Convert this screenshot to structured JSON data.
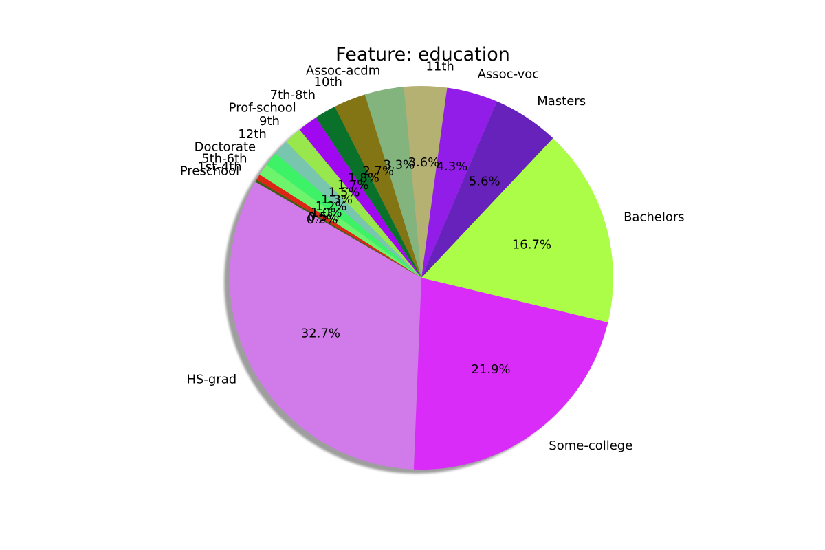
{
  "chart_data": {
    "type": "pie",
    "title": "Feature: education",
    "start_angle_deg": 150,
    "direction": "counterclockwise",
    "shadow": true,
    "slices": [
      {
        "label": "HS-grad",
        "value": 32.7,
        "pct_text": "32.7%",
        "color": "#d17aea"
      },
      {
        "label": "Some-college",
        "value": 21.9,
        "pct_text": "21.9%",
        "color": "#da2cf9"
      },
      {
        "label": "Bachelors",
        "value": 16.7,
        "pct_text": "16.7%",
        "color": "#acfd47"
      },
      {
        "label": "Masters",
        "value": 5.6,
        "pct_text": "5.6%",
        "color": "#6622bb"
      },
      {
        "label": "Assoc-voc",
        "value": 4.3,
        "pct_text": "4.3%",
        "color": "#931de8"
      },
      {
        "label": "11th",
        "value": 3.6,
        "pct_text": "3.6%",
        "color": "#b5b173"
      },
      {
        "label": "Assoc-acdm",
        "value": 3.3,
        "pct_text": "3.3%",
        "color": "#83b47d"
      },
      {
        "label": "10th",
        "value": 2.7,
        "pct_text": "2.7%",
        "color": "#837414"
      },
      {
        "label": "7th-8th",
        "value": 1.8,
        "pct_text": "1.8%",
        "color": "#09712a"
      },
      {
        "label": "Prof-school",
        "value": 1.7,
        "pct_text": "1.7%",
        "color": "#a008ef"
      },
      {
        "label": "9th",
        "value": 1.5,
        "pct_text": "1.5%",
        "color": "#98e84d"
      },
      {
        "label": "12th",
        "value": 1.3,
        "pct_text": "1.3%",
        "color": "#78c6ae"
      },
      {
        "label": "Doctorate",
        "value": 1.2,
        "pct_text": "1.2%",
        "color": "#3ef268"
      },
      {
        "label": "5th-6th",
        "value": 1.0,
        "pct_text": "1.0%",
        "color": "#6df46d"
      },
      {
        "label": "1st-4th",
        "value": 0.5,
        "pct_text": "0.5%",
        "color": "#dc2515"
      },
      {
        "label": "Preschool",
        "value": 0.2,
        "pct_text": "0.2%",
        "color": "#3f5c16"
      }
    ]
  }
}
